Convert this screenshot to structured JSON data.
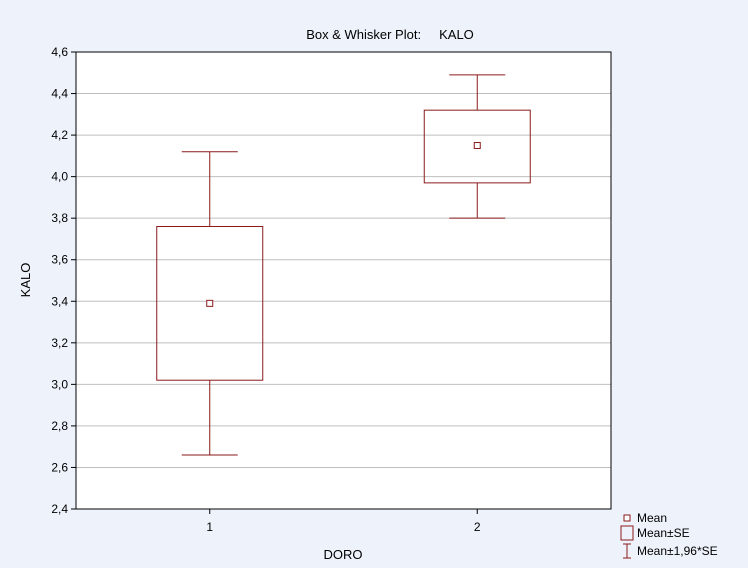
{
  "chart_data": {
    "type": "box",
    "title": "Box & Whisker Plot:     KALO",
    "xlabel": "DORO",
    "ylabel": "KALO",
    "ylim": [
      2.4,
      4.6
    ],
    "yticks": [
      "2,4",
      "2,6",
      "2,8",
      "3,0",
      "3,2",
      "3,4",
      "3,6",
      "3,8",
      "4,0",
      "4,2",
      "4,4",
      "4,6"
    ],
    "ytick_values": [
      2.4,
      2.6,
      2.8,
      3.0,
      3.2,
      3.4,
      3.6,
      3.8,
      4.0,
      4.2,
      4.4,
      4.6
    ],
    "categories": [
      "1",
      "2"
    ],
    "grid": true,
    "legend_position": "bottom-right",
    "colors": {
      "series": "#8b1a1a",
      "grid": "#bfbfbf",
      "background": "#eef3fb",
      "plot_background": "#ffffff"
    },
    "groups": [
      {
        "category": "1",
        "mean": 3.39,
        "se_low": 3.02,
        "se_high": 3.76,
        "ci_low": 2.66,
        "ci_high": 4.12
      },
      {
        "category": "2",
        "mean": 4.15,
        "se_low": 3.97,
        "se_high": 4.32,
        "ci_low": 3.8,
        "ci_high": 4.49
      }
    ],
    "legend": [
      {
        "symbol": "mean",
        "label": "Mean"
      },
      {
        "symbol": "box",
        "label": "Mean±SE"
      },
      {
        "symbol": "whisker",
        "label": "Mean±1,96*SE"
      }
    ]
  }
}
